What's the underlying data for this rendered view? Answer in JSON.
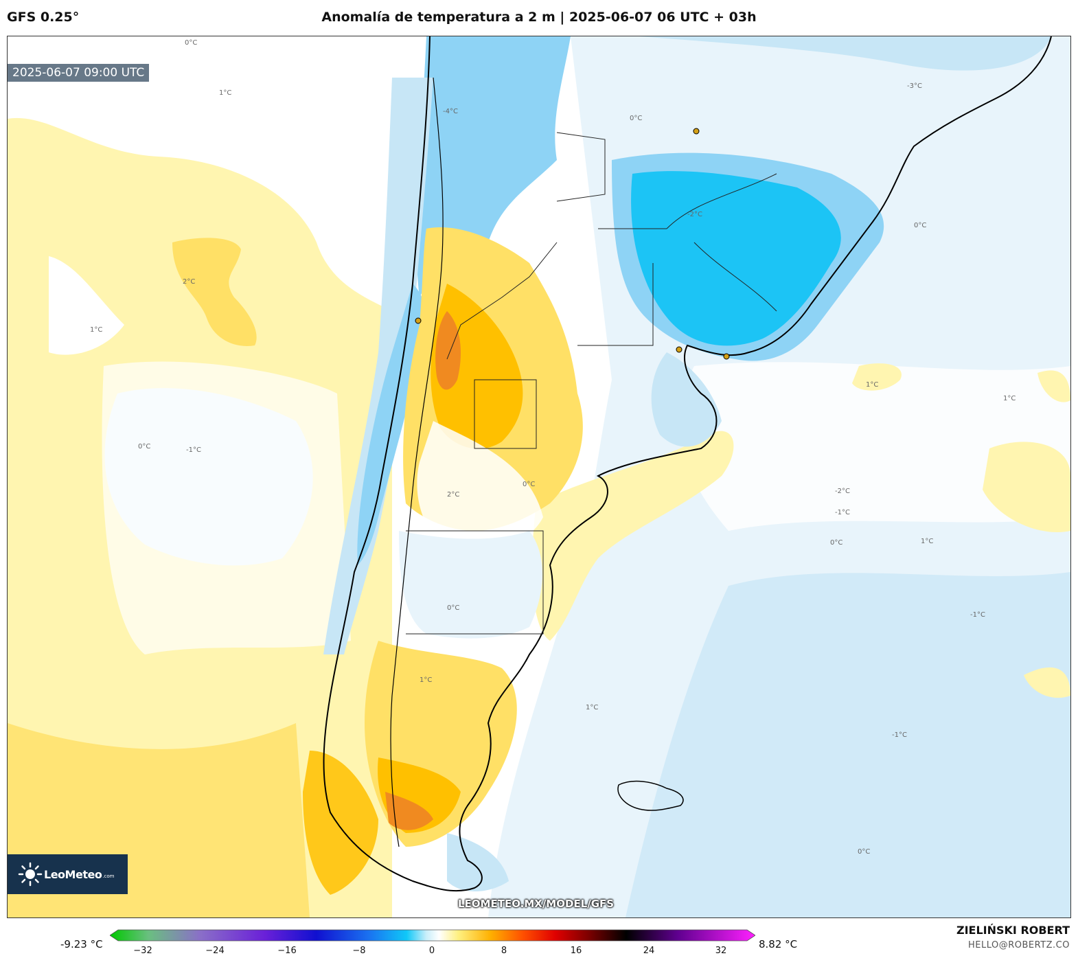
{
  "header": {
    "model": "GFS 0.25°",
    "title": "Anomalía de temperatura a 2 m | 2025-06-07 06 UTC + 03h"
  },
  "map": {
    "valid_time": "2025-06-07 09:00 UTC",
    "watermark": "LEOMETEO.MX/MODEL/GFS",
    "logo_text": "LeoMeteo",
    "logo_sub": ".com",
    "contour_labels": [
      "0°C",
      "1°C",
      "2°C",
      "-1°C",
      "-2°C",
      "-3°C",
      "-4°C"
    ],
    "colors": {
      "warm_light": "#fff5b0",
      "warm_mid": "#ffe066",
      "warm_strong": "#ffc000",
      "warm_peak": "#f08a20",
      "cool_light": "#e8f4fb",
      "cool_mid": "#c7e6f6",
      "cool_strong": "#8ed3f5",
      "cool_peak": "#1cc4f5"
    }
  },
  "colorbar": {
    "min_label": "-9.23 °C",
    "max_label": "8.82 °C",
    "ticks": [
      "−32",
      "−24",
      "−16",
      "−8",
      "0",
      "8",
      "16",
      "24",
      "32"
    ],
    "range": [
      -35,
      35
    ]
  },
  "credits": {
    "name": "ZIELIŃSKI ROBERT",
    "email": "HELLO@ROBERTZ.CO"
  }
}
